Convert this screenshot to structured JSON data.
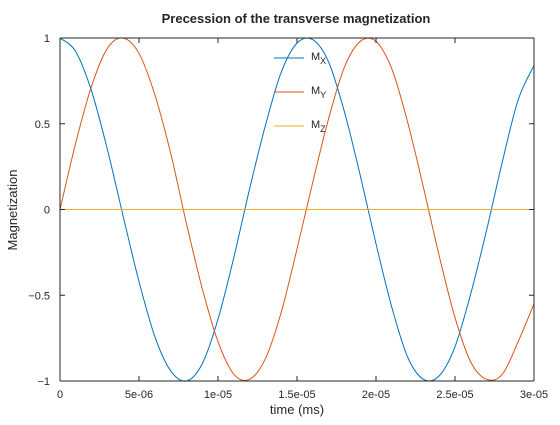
{
  "chart_data": {
    "type": "line",
    "title": "Precession of the transverse magnetization",
    "xlabel": "time (ms)",
    "ylabel": "Magnetization",
    "xlim": [
      0,
      3e-05
    ],
    "ylim": [
      -1,
      1
    ],
    "grid": false,
    "legend_position": "top-center",
    "xticks": [
      {
        "value": 0,
        "label": "0"
      },
      {
        "value": 5e-06,
        "label": "5e-06"
      },
      {
        "value": 1e-05,
        "label": "1e-05"
      },
      {
        "value": 1.5e-05,
        "label": "1.5e-05"
      },
      {
        "value": 2e-05,
        "label": "2e-05"
      },
      {
        "value": 2.5e-05,
        "label": "2.5e-05"
      },
      {
        "value": 3e-05,
        "label": "3e-05"
      }
    ],
    "yticks": [
      {
        "value": -1,
        "label": "−1"
      },
      {
        "value": -0.5,
        "label": "−0.5"
      },
      {
        "value": 0,
        "label": "0"
      },
      {
        "value": 0.5,
        "label": "0.5"
      },
      {
        "value": 1,
        "label": "1"
      }
    ],
    "x": [
      0,
      1e-06,
      2e-06,
      3e-06,
      4e-06,
      5e-06,
      6e-06,
      7e-06,
      8e-06,
      9e-06,
      1e-05,
      1.1e-05,
      1.2e-05,
      1.3e-05,
      1.4e-05,
      1.5e-05,
      1.6e-05,
      1.7e-05,
      1.8e-05,
      1.9e-05,
      2e-05,
      2.1e-05,
      2.2e-05,
      2.3e-05,
      2.4e-05,
      2.5e-05,
      2.6e-05,
      2.7e-05,
      2.8e-05,
      2.9e-05,
      3e-05
    ],
    "series": [
      {
        "name": "M",
        "subscript": "X",
        "color": "#0072bd",
        "values": [
          1.0,
          0.92,
          0.69,
          0.35,
          -0.04,
          -0.42,
          -0.74,
          -0.94,
          -1.0,
          -0.9,
          -0.64,
          -0.28,
          0.12,
          0.49,
          0.8,
          0.97,
          0.99,
          0.86,
          0.57,
          0.2,
          -0.2,
          -0.57,
          -0.86,
          -0.99,
          -0.97,
          -0.8,
          -0.49,
          -0.12,
          0.28,
          0.64,
          0.84
        ]
      },
      {
        "name": "M",
        "subscript": "Y",
        "color": "#d95319",
        "values": [
          0.0,
          0.39,
          0.72,
          0.94,
          1.0,
          0.91,
          0.67,
          0.33,
          -0.08,
          -0.46,
          -0.77,
          -0.96,
          -0.99,
          -0.87,
          -0.6,
          -0.23,
          0.16,
          0.53,
          0.83,
          0.98,
          0.98,
          0.82,
          0.51,
          0.13,
          -0.27,
          -0.63,
          -0.89,
          -0.99,
          -0.96,
          -0.77,
          -0.55
        ]
      },
      {
        "name": "M",
        "subscript": "Z",
        "color": "#edb120",
        "values": [
          0,
          0,
          0,
          0,
          0,
          0,
          0,
          0,
          0,
          0,
          0,
          0,
          0,
          0,
          0,
          0,
          0,
          0,
          0,
          0,
          0,
          0,
          0,
          0,
          0,
          0,
          0,
          0,
          0,
          0,
          0
        ]
      }
    ]
  }
}
